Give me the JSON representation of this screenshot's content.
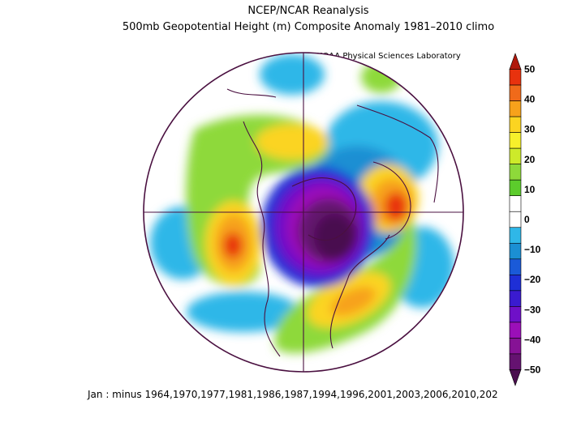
{
  "header": {
    "title": "NCEP/NCAR Reanalysis",
    "subtitle": "500mb Geopotential Height (m) Composite Anomaly 1981–2010 climo"
  },
  "credit": "NOAA Physical Sciences Laboratory",
  "footer": "Jan :   minus 1964,1970,1977,1981,1986,1987,1994,1996,2001,2003,2006,2010,202",
  "colorbar": {
    "labels": [
      "50",
      "40",
      "30",
      "20",
      "10",
      "0",
      "−10",
      "−20",
      "−30",
      "−40",
      "−50"
    ],
    "colors": [
      "#b0180c",
      "#e8320e",
      "#f06a1a",
      "#f7a21b",
      "#fbd421",
      "#f7f02b",
      "#cdea2a",
      "#8ed93a",
      "#5ccc2c",
      "#ffffff",
      "#ffffff",
      "#2fb7e8",
      "#1b8fd3",
      "#1a5ad8",
      "#1e2fd6",
      "#3a1bd0",
      "#6f10c8",
      "#9b0fb8",
      "#861295",
      "#651270",
      "#4a0e4f"
    ]
  },
  "map": {
    "projection": "north-polar-stereographic",
    "colors": {
      "boundary": "#4a1040",
      "red": "#e8320e",
      "orange": "#f06a1a",
      "lightorange": "#f7a21b",
      "yellow": "#fbd421",
      "lime": "#cdea2a",
      "green": "#5ccc2c",
      "cyan": "#2fb7e8",
      "blue": "#1b8fd3",
      "royal": "#1e2fd6",
      "violet": "#6f10c8",
      "purple": "#9b0fb8",
      "darkpurple": "#4a0e4f"
    }
  }
}
